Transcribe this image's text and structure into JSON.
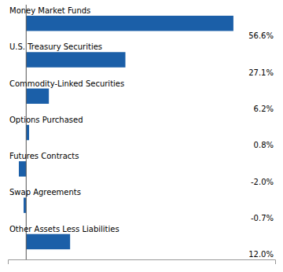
{
  "chart_data": {
    "type": "bar",
    "orientation": "horizontal",
    "categories": [
      "Money Market Funds",
      "U.S. Treasury Securities",
      "Commodity-Linked Securities",
      "Options Purchased",
      "Futures Contracts",
      "Swap Agreements",
      "Other Assets Less Liabilities"
    ],
    "values": [
      56.6,
      27.1,
      6.2,
      0.8,
      -2.0,
      -0.7,
      12.0
    ],
    "value_labels": [
      "56.6%",
      "27.1%",
      "6.2%",
      "0.8%",
      "-2.0%",
      "-0.7%",
      "12.0%"
    ],
    "data_labels": true,
    "color": "#1B5FA8",
    "xlim": [
      -5,
      68
    ],
    "tick_labels": false
  }
}
